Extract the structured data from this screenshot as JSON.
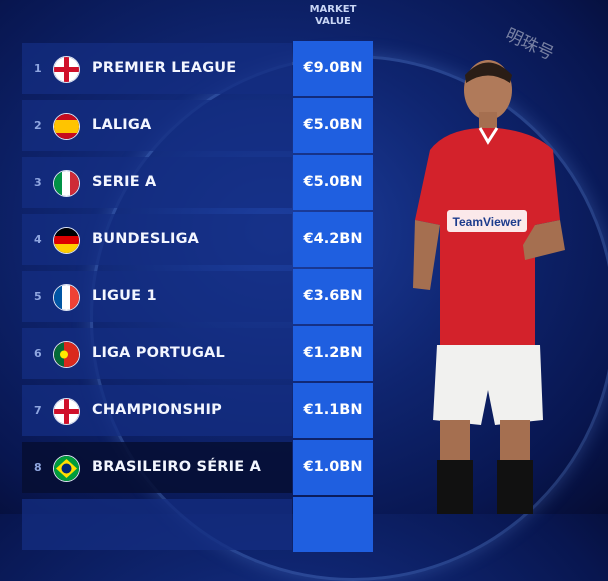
{
  "header": {
    "line1": "MARKET",
    "line2": "VALUE"
  },
  "colors": {
    "value_box": "#1f5fe0",
    "background": "#0f2570"
  },
  "rows": [
    {
      "rank": "1",
      "league": "PREMIER LEAGUE",
      "value": "€9.0BN",
      "flag": "england"
    },
    {
      "rank": "2",
      "league": "LALIGA",
      "value": "€5.0BN",
      "flag": "spain"
    },
    {
      "rank": "3",
      "league": "SERIE A",
      "value": "€5.0BN",
      "flag": "italy"
    },
    {
      "rank": "4",
      "league": "BUNDESLIGA",
      "value": "€4.2BN",
      "flag": "germany"
    },
    {
      "rank": "5",
      "league": "LIGUE 1",
      "value": "€3.6BN",
      "flag": "france"
    },
    {
      "rank": "6",
      "league": "LIGA PORTUGAL",
      "value": "€1.2BN",
      "flag": "portugal"
    },
    {
      "rank": "7",
      "league": "CHAMPIONSHIP",
      "value": "€1.1BN",
      "flag": "england"
    },
    {
      "rank": "8",
      "league": "BRASILEIRO SÉRIE A",
      "value": "€1.0BN",
      "flag": "brazil"
    }
  ],
  "player": {
    "shirt_sponsor": "TeamViewer"
  },
  "watermark": "明珠号"
}
